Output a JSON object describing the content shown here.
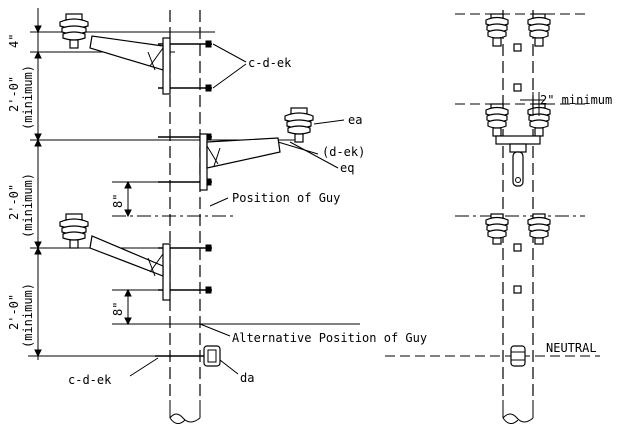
{
  "labels": {
    "four_inch": "4\"",
    "two_ft_1": "2'-0\"",
    "min_1": "(minimum)",
    "two_ft_2": "2'-0\"",
    "min_2": "(minimum)",
    "two_ft_3": "2'-0\"",
    "min_3": "(minimum)",
    "eight_inch_1": "8\"",
    "eight_inch_2": "8\"",
    "c_d_ek_top": "c-d-ek",
    "ea": "ea",
    "d_ek": "(d-ek)",
    "eq": "eq",
    "position_guy": "Position of Guy",
    "alt_position_guy": "Alternative Position of Guy",
    "c_d_ek_bottom": "c-d-ek",
    "da": "da",
    "two_inch_min": "2\" minimum",
    "neutral": "NEUTRAL"
  }
}
